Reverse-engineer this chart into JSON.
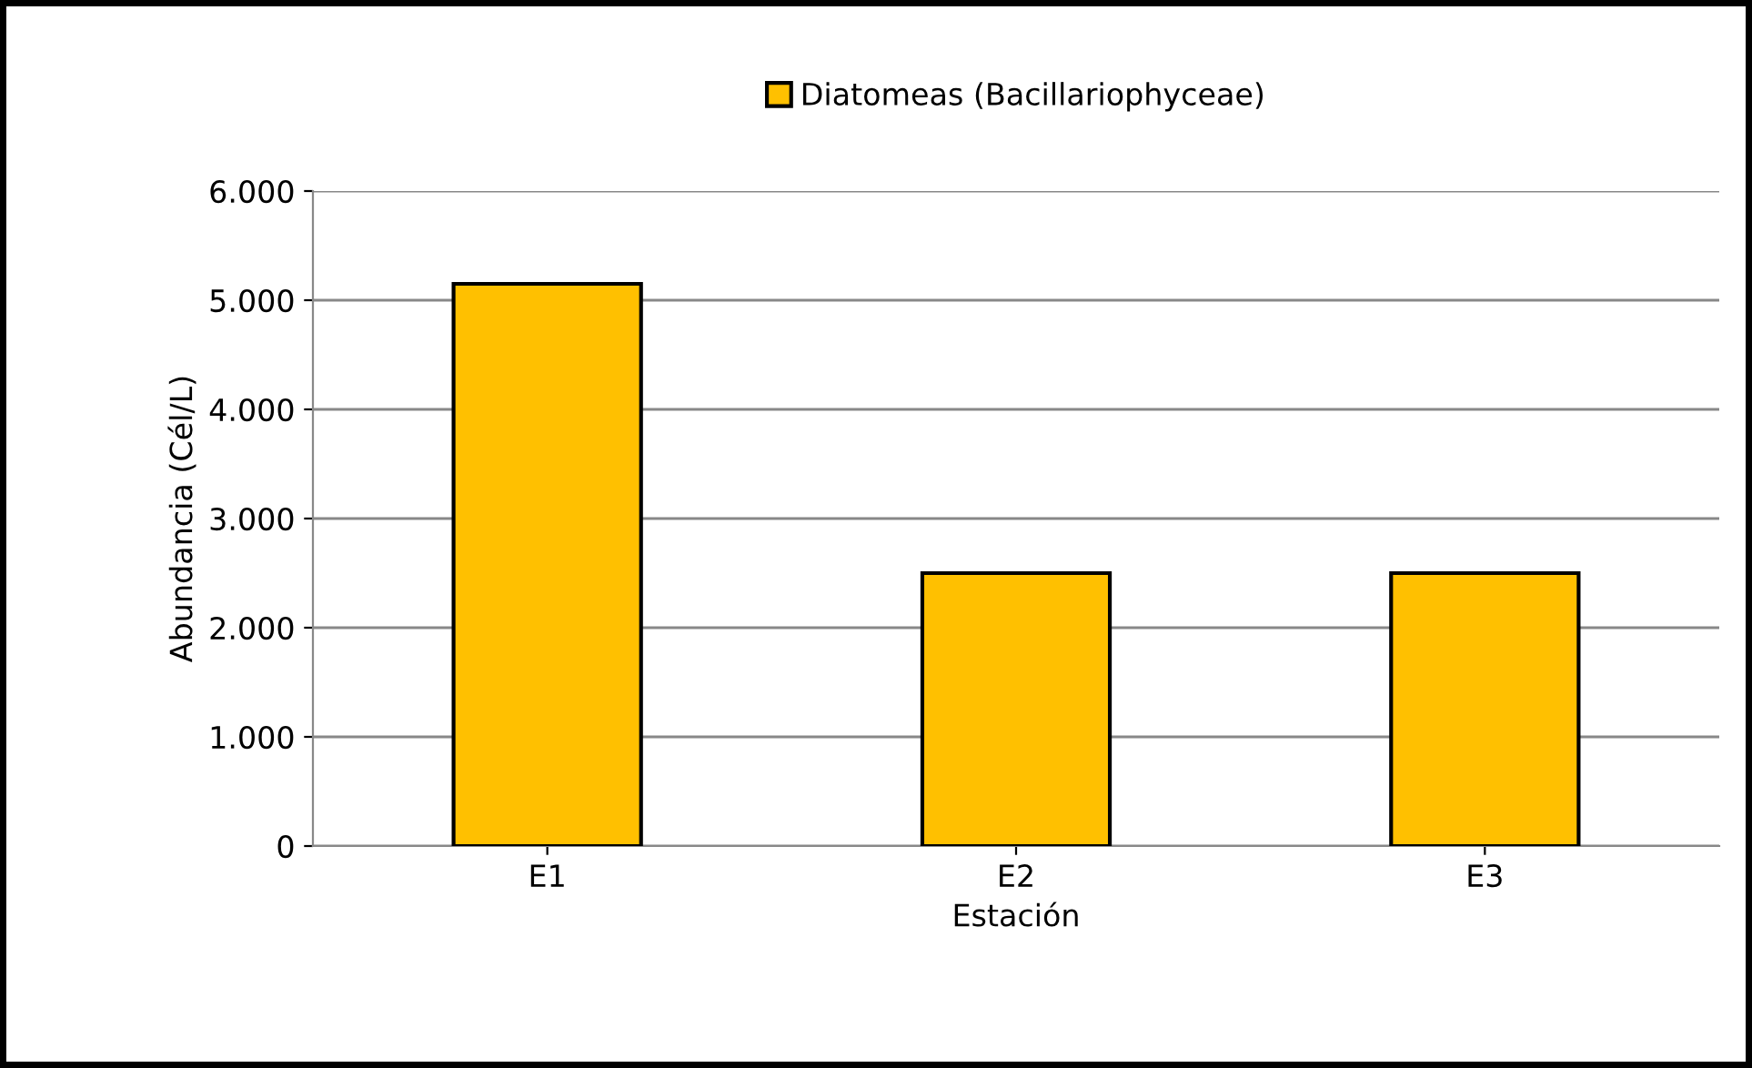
{
  "chart_data": {
    "type": "bar",
    "xlabel": "Estación",
    "ylabel": "Abundancia (Cél/L)",
    "categories": [
      "E1",
      "E2",
      "E3"
    ],
    "series": [
      {
        "name": "Diatomeas (Bacillariophyceae)",
        "color": "#ffc000",
        "values": [
          5150,
          2500,
          2500
        ]
      }
    ],
    "ylim": [
      0,
      6000
    ],
    "yticks": [
      {
        "value": 0,
        "label": "0"
      },
      {
        "value": 1000,
        "label": "1.000"
      },
      {
        "value": 2000,
        "label": "2.000"
      },
      {
        "value": 3000,
        "label": "3.000"
      },
      {
        "value": 4000,
        "label": "4.000"
      },
      {
        "value": 5000,
        "label": "5.000"
      },
      {
        "value": 6000,
        "label": "6.000"
      }
    ],
    "grid": "y",
    "legend": "top"
  }
}
